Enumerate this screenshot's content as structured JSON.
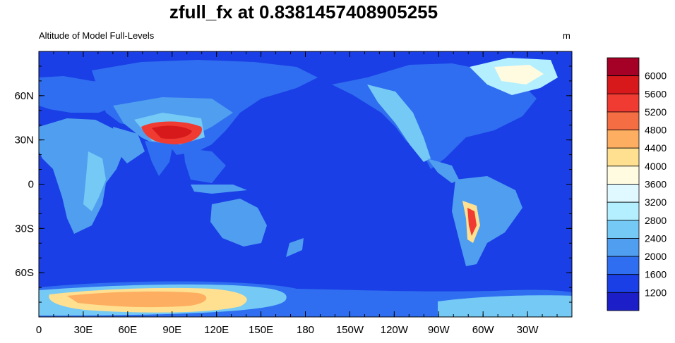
{
  "title": "zfull_fx at 0.8381457408905255",
  "subtitle_left": "Altitude of Model Full-Levels",
  "subtitle_right": "m",
  "map": {
    "projection": "cylindrical-equidistant",
    "center_longitude": 180,
    "lat_range": [
      -90,
      90
    ],
    "lon_range": [
      0,
      360
    ],
    "ocean_color": "#1a3fe6",
    "x_tick_labels": [
      "0",
      "30E",
      "60E",
      "90E",
      "120E",
      "150E",
      "180",
      "150W",
      "120W",
      "90W",
      "60W",
      "30W"
    ],
    "y_tick_labels": [
      "60N",
      "30N",
      "0",
      "30S",
      "60S"
    ]
  },
  "colorbar": {
    "levels": [
      "6000",
      "5600",
      "5200",
      "4800",
      "4400",
      "4000",
      "3600",
      "3200",
      "2800",
      "2400",
      "2000",
      "1600",
      "1200"
    ],
    "colors": [
      "#a50026",
      "#d7191c",
      "#f03b32",
      "#f46d43",
      "#fdae61",
      "#fee090",
      "#fffbe0",
      "#e0f8ff",
      "#b3efff",
      "#74c9f5",
      "#4f9ef0",
      "#2f6ef0",
      "#1a3fe6",
      "#1c1fc8"
    ]
  }
}
